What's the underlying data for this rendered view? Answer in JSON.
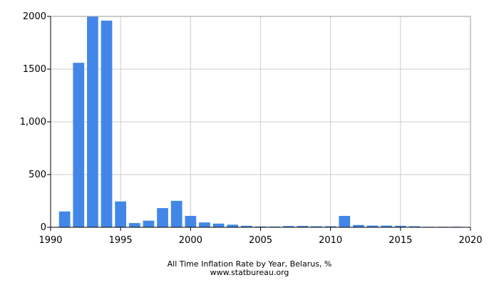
{
  "chart_data": {
    "type": "bar",
    "title": "All Time Inflation Rate by Year, Belarus, %",
    "subtitle": "www.statbureau.org",
    "xlabel": "",
    "ylabel": "",
    "xlim": [
      1990,
      2020
    ],
    "ylim": [
      0,
      2000
    ],
    "x_ticks": [
      1990,
      1995,
      2000,
      2005,
      2010,
      2015,
      2020
    ],
    "y_ticks": [
      0,
      500,
      1000,
      1500,
      2000
    ],
    "y_tick_labels": [
      "0",
      "500",
      "1,000",
      "1500",
      "2000"
    ],
    "grid": true,
    "bar_color": "#4287e8",
    "x": [
      1991,
      1992,
      1993,
      1994,
      1995,
      1996,
      1997,
      1998,
      1999,
      2000,
      2001,
      2002,
      2003,
      2004,
      2005,
      2006,
      2007,
      2008,
      2009,
      2010,
      2011,
      2012,
      2013,
      2014,
      2015,
      2016,
      2017,
      2018,
      2019
    ],
    "values": [
      150,
      1560,
      2000,
      1960,
      245,
      40,
      63,
      182,
      251,
      108,
      46,
      35,
      25,
      14,
      8,
      7,
      12,
      13,
      10,
      10,
      108,
      22,
      16,
      16,
      14,
      10,
      5,
      5,
      5
    ]
  }
}
